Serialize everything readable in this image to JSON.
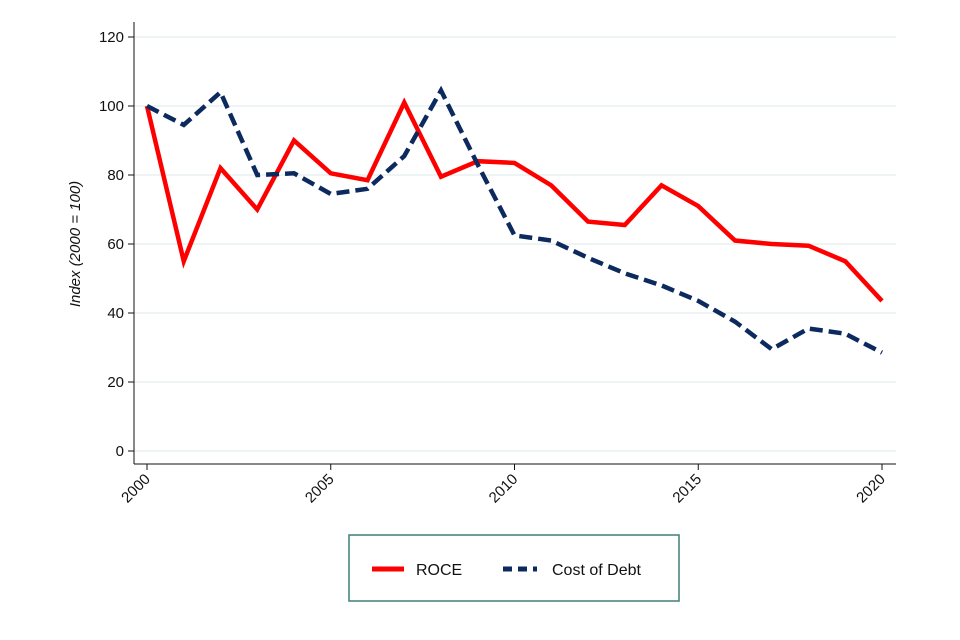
{
  "chart_data": {
    "type": "line",
    "title": "",
    "xlabel": "",
    "ylabel": "Index (2000 = 100)",
    "x": [
      2000,
      2001,
      2002,
      2003,
      2004,
      2005,
      2006,
      2007,
      2008,
      2009,
      2010,
      2011,
      2012,
      2013,
      2014,
      2015,
      2016,
      2017,
      2018,
      2019,
      2020
    ],
    "xlim": [
      2000,
      2020
    ],
    "ylim": [
      0,
      120
    ],
    "xticks": [
      "2000",
      "2005",
      "2010",
      "2015",
      "2020"
    ],
    "yticks": [
      "0",
      "20",
      "40",
      "60",
      "80",
      "100",
      "120"
    ],
    "grid": "horizontal",
    "legend_position": "bottom",
    "series": [
      {
        "name": "ROCE",
        "color": "#ff0000",
        "style": "solid",
        "values": [
          100,
          55,
          82,
          70,
          90,
          80.5,
          78.5,
          101,
          79.5,
          84,
          83.5,
          77,
          66.5,
          65.5,
          77,
          71,
          61,
          60,
          59.5,
          55,
          43.5
        ]
      },
      {
        "name": "Cost of Debt",
        "color": "#0c2a5e",
        "style": "dashed",
        "values": [
          100,
          94.5,
          104,
          80,
          80.5,
          74.5,
          76,
          85.5,
          104.5,
          83,
          62.5,
          61,
          56,
          51.5,
          48,
          43.5,
          37.5,
          29.5,
          35.5,
          34,
          28.5
        ]
      }
    ]
  }
}
